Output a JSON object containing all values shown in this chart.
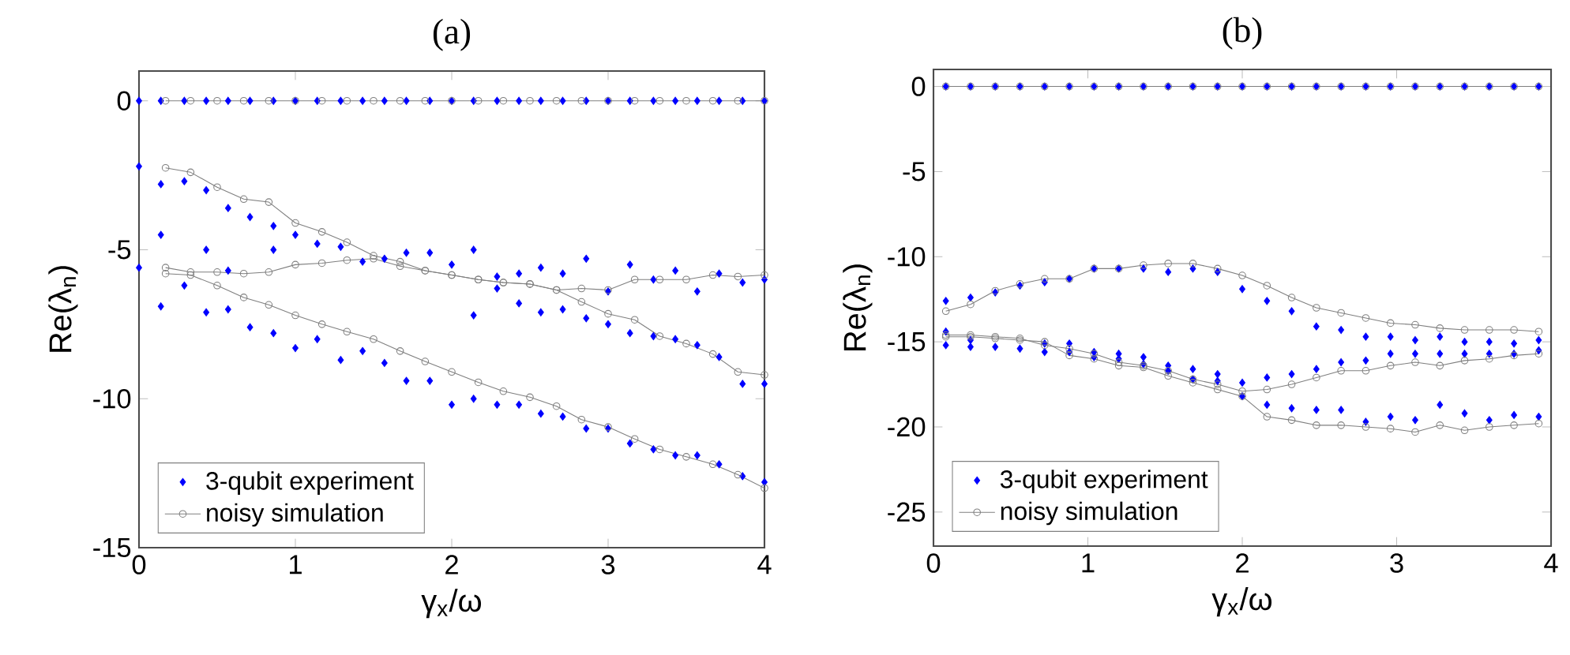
{
  "chart_data": [
    {
      "type": "scatter",
      "title": "(a)",
      "xlabel": "γ$_{x}$/ω",
      "ylabel": "Re(λ$_{n}$)",
      "xlim": [
        0,
        4
      ],
      "ylim": [
        -15,
        1
      ],
      "xticks": [
        0,
        1,
        2,
        3,
        4
      ],
      "yticks": [
        -15,
        -10,
        -5,
        0
      ],
      "legend": "bottom left",
      "series": [
        {
          "name": "3-qubit experiment",
          "marker": "diamond",
          "color": "#0000ff",
          "x": [
            0,
            0.14,
            0.29,
            0.43,
            0.57,
            0.71,
            0.86,
            1,
            1.14,
            1.29,
            1.43,
            1.57,
            1.71,
            1.86,
            2,
            2.14,
            2.29,
            2.43,
            2.57,
            2.71,
            2.86,
            3,
            3.14,
            3.29,
            3.43,
            3.57,
            3.71,
            3.86,
            4
          ],
          "values": [
            0,
            0,
            0,
            0,
            0,
            0,
            0,
            0,
            0,
            0,
            0,
            0,
            0,
            0,
            0,
            0,
            0,
            0,
            0,
            0,
            0,
            0,
            0,
            0,
            0,
            0,
            0,
            0,
            0
          ]
        },
        {
          "marker": "diamond",
          "color": "#0000ff",
          "x": [
            0,
            0.14,
            0.29,
            0.43,
            0.57,
            0.71,
            0.86,
            1,
            1.14,
            1.29,
            1.43,
            1.57,
            1.71,
            1.86,
            2,
            2.14,
            2.29,
            2.43,
            2.57,
            2.71,
            2.86,
            3,
            3.14,
            3.29,
            3.43,
            3.57,
            3.71,
            3.86,
            4
          ],
          "values": [
            -2.2,
            -2.8,
            -2.7,
            -3.0,
            -3.6,
            -3.9,
            -4.2,
            -4.5,
            -4.8,
            -4.9,
            -5.4,
            -5.3,
            -5.1,
            -5.1,
            -5.5,
            -5.0,
            -5.9,
            -5.8,
            -5.6,
            -5.8,
            -5.3,
            -6.4,
            -5.5,
            -6.0,
            -5.7,
            -6.4,
            -5.8,
            -6.1,
            -6.0
          ]
        },
        {
          "marker": "diamond",
          "color": "#0000ff",
          "x": [
            0,
            0.14,
            0.43,
            0.57,
            0.86,
            2.14,
            2.29,
            2.43,
            2.57,
            2.71,
            2.86,
            3,
            3.14,
            3.29,
            3.43,
            3.57,
            3.71,
            3.86,
            4
          ],
          "values": [
            -5.6,
            -4.5,
            -5.0,
            -5.7,
            -5.0,
            -7.2,
            -6.3,
            -6.8,
            -7.1,
            -7.0,
            -7.3,
            -7.5,
            -7.8,
            -7.9,
            -8.0,
            -8.2,
            -8.6,
            -9.5,
            -9.5
          ]
        },
        {
          "marker": "diamond",
          "color": "#0000ff",
          "x": [
            0.14,
            0.29,
            0.43,
            0.57,
            0.71,
            0.86,
            1,
            1.14,
            1.29,
            1.43,
            1.57,
            1.71,
            1.86,
            2,
            2.14,
            2.29,
            2.43,
            2.57,
            2.71,
            2.86,
            3,
            3.14,
            3.29,
            3.43,
            3.57,
            3.71,
            3.86,
            4
          ],
          "values": [
            -6.9,
            -6.2,
            -7.1,
            -7.0,
            -7.6,
            -7.8,
            -8.3,
            -8.0,
            -8.7,
            -8.4,
            -8.8,
            -9.4,
            -9.4,
            -10.2,
            -10.0,
            -10.2,
            -10.2,
            -10.5,
            -10.6,
            -11.0,
            -11.0,
            -11.5,
            -11.7,
            -11.9,
            -11.9,
            -12.2,
            -12.6,
            -12.8
          ]
        },
        {
          "name": "noisy simulation",
          "type": "line",
          "marker": "circle",
          "color": "#7f7f7f",
          "x": [
            0.17,
            0.33,
            0.5,
            0.67,
            0.83,
            1,
            1.17,
            1.33,
            1.5,
            1.67,
            1.83,
            2,
            2.17,
            2.33,
            2.5,
            2.67,
            2.83,
            3,
            3.17,
            3.33,
            3.5,
            3.67,
            3.83,
            4
          ],
          "values": [
            0,
            0,
            0,
            0,
            0,
            0,
            0,
            0,
            0,
            0,
            0,
            0,
            0,
            0,
            0,
            0,
            0,
            0,
            0,
            0,
            0,
            0,
            0,
            0
          ]
        },
        {
          "type": "line",
          "marker": "circle",
          "color": "#7f7f7f",
          "x": [
            0.17,
            0.33,
            0.5,
            0.67,
            0.83,
            1,
            1.17,
            1.33,
            1.5,
            1.67,
            1.83,
            2,
            2.17,
            2.33,
            2.5,
            2.67,
            2.83,
            3,
            3.17,
            3.33,
            3.5,
            3.67,
            3.83,
            4
          ],
          "values": [
            -2.25,
            -2.4,
            -2.9,
            -3.3,
            -3.4,
            -4.1,
            -4.4,
            -4.75,
            -5.2,
            -5.4,
            -5.7,
            -5.85,
            -6.0,
            -6.1,
            -6.15,
            -6.35,
            -6.3,
            -6.35,
            -6.0,
            -6.0,
            -6.0,
            -5.85,
            -5.9,
            -5.85
          ]
        },
        {
          "type": "line",
          "marker": "circle",
          "color": "#7f7f7f",
          "x": [
            0.17,
            0.33,
            0.5,
            0.67,
            0.83,
            1,
            1.17,
            1.33,
            1.5,
            1.67,
            1.83,
            2,
            2.17,
            2.33,
            2.5,
            2.67,
            2.83,
            3,
            3.17,
            3.33,
            3.5,
            3.67,
            3.83,
            4
          ],
          "values": [
            -5.6,
            -5.75,
            -5.75,
            -5.8,
            -5.75,
            -5.5,
            -5.45,
            -5.35,
            -5.3,
            -5.55,
            -5.7,
            -5.85,
            -6.0,
            -6.1,
            -6.15,
            -6.35,
            -6.75,
            -7.15,
            -7.35,
            -7.9,
            -8.15,
            -8.5,
            -9.1,
            -9.2
          ]
        },
        {
          "type": "line",
          "marker": "circle",
          "color": "#7f7f7f",
          "x": [
            0.17,
            0.33,
            0.5,
            0.67,
            0.83,
            1,
            1.17,
            1.33,
            1.5,
            1.67,
            1.83,
            2,
            2.17,
            2.33,
            2.5,
            2.67,
            2.83,
            3,
            3.17,
            3.33,
            3.5,
            3.67,
            3.83,
            4
          ],
          "values": [
            -5.8,
            -5.85,
            -6.2,
            -6.6,
            -6.85,
            -7.2,
            -7.5,
            -7.75,
            -8.0,
            -8.4,
            -8.75,
            -9.1,
            -9.45,
            -9.75,
            -9.95,
            -10.25,
            -10.7,
            -10.95,
            -11.35,
            -11.7,
            -11.95,
            -12.2,
            -12.55,
            -13.0
          ]
        }
      ]
    },
    {
      "type": "scatter",
      "title": "(b)",
      "xlabel": "γ$_{x}$/ω",
      "ylabel": "Re(λ$_{n}$)",
      "xlim": [
        0,
        4
      ],
      "ylim": [
        -27,
        1
      ],
      "xticks": [
        0,
        1,
        2,
        3,
        4
      ],
      "yticks": [
        -25,
        -20,
        -15,
        -10,
        -5,
        0
      ],
      "legend": "bottom left",
      "x": [
        0.08,
        0.24,
        0.4,
        0.56,
        0.72,
        0.88,
        1.04,
        1.2,
        1.36,
        1.52,
        1.68,
        1.84,
        2,
        2.16,
        2.32,
        2.48,
        2.64,
        2.8,
        2.96,
        3.12,
        3.28,
        3.44,
        3.6,
        3.76,
        3.92
      ],
      "series": [
        {
          "name": "3-qubit experiment",
          "marker": "diamond",
          "color": "#0000ff",
          "values": [
            0,
            0,
            0,
            0,
            0,
            0,
            0,
            0,
            0,
            0,
            0,
            0,
            0,
            0,
            0,
            0,
            0,
            0,
            0,
            0,
            0,
            0,
            0,
            0,
            0
          ]
        },
        {
          "marker": "diamond",
          "color": "#0000ff",
          "values": [
            -12.6,
            -12.4,
            -12.1,
            -11.7,
            -11.5,
            -11.3,
            -10.7,
            -10.7,
            -10.7,
            -10.9,
            -10.7,
            -10.9,
            -11.9,
            -12.6,
            -13.2,
            -14.1,
            -14.3,
            -14.7,
            -14.7,
            -14.9,
            -14.7,
            -15.0,
            -15.0,
            -15.1,
            -14.9
          ]
        },
        {
          "marker": "diamond",
          "color": "#0000ff",
          "values": [
            -14.4,
            -14.9,
            null,
            null,
            -15.1,
            -15.1,
            -15.6,
            -15.7,
            -15.9,
            -16.4,
            -16.6,
            -16.9,
            -17.4,
            -17.1,
            -16.9,
            -16.6,
            -16.2,
            -16.1,
            -15.7,
            -15.7,
            -15.7,
            -15.7,
            -15.7,
            -15.7,
            -15.5
          ]
        },
        {
          "marker": "diamond",
          "color": "#0000ff",
          "values": [
            -15.2,
            -15.3,
            -15.3,
            -15.4,
            -15.6,
            -15.6,
            -15.9,
            -16.0,
            -16.3,
            -16.7,
            -17.2,
            -17.3,
            -18.2,
            -18.7,
            -18.9,
            -19.0,
            -19.0,
            -19.7,
            -19.4,
            -19.6,
            -18.7,
            -19.2,
            -19.6,
            -19.3,
            -19.4
          ]
        },
        {
          "name": "noisy simulation",
          "type": "line",
          "marker": "circle",
          "color": "#7f7f7f",
          "values": [
            0,
            0,
            0,
            0,
            0,
            0,
            0,
            0,
            0,
            0,
            0,
            0,
            0,
            0,
            0,
            0,
            0,
            0,
            0,
            0,
            0,
            0,
            0,
            0,
            0
          ]
        },
        {
          "type": "line",
          "marker": "circle",
          "color": "#7f7f7f",
          "values": [
            -13.2,
            -12.8,
            -12.0,
            -11.6,
            -11.3,
            -11.3,
            -10.7,
            -10.7,
            -10.5,
            -10.4,
            -10.4,
            -10.7,
            -11.1,
            -11.7,
            -12.4,
            -13.0,
            -13.3,
            -13.6,
            -13.9,
            -14.0,
            -14.2,
            -14.3,
            -14.3,
            -14.3,
            -14.4
          ]
        },
        {
          "type": "line",
          "marker": "circle",
          "color": "#7f7f7f",
          "values": [
            -14.6,
            -14.6,
            -14.7,
            -14.8,
            -15.2,
            -15.4,
            -15.7,
            -16.2,
            -16.4,
            -16.7,
            -17.2,
            -17.5,
            -17.9,
            -17.8,
            -17.5,
            -17.1,
            -16.7,
            -16.7,
            -16.4,
            -16.2,
            -16.4,
            -16.1,
            -16.0,
            -15.8,
            -15.7
          ]
        },
        {
          "type": "line",
          "marker": "circle",
          "color": "#7f7f7f",
          "values": [
            -14.7,
            -14.7,
            -14.8,
            -14.9,
            -15.0,
            -15.8,
            -16.0,
            -16.4,
            -16.5,
            -17.0,
            -17.4,
            -17.8,
            -18.2,
            -19.4,
            -19.6,
            -19.9,
            -19.9,
            -20.0,
            -20.1,
            -20.3,
            -19.9,
            -20.2,
            -20.0,
            -19.9,
            -19.8
          ]
        }
      ]
    }
  ]
}
